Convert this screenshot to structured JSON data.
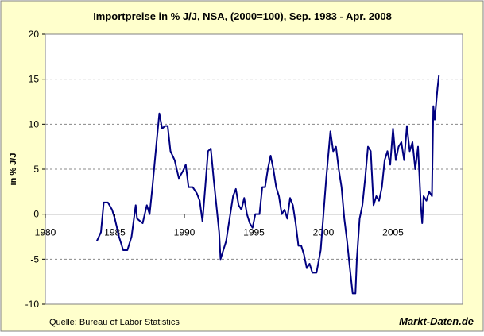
{
  "chart_data": {
    "type": "line",
    "title": "Importpreise in % J/J, NSA, (2000=100), Sep. 1983 - Apr. 2008",
    "y_label": "in % J/J",
    "source": "Quelle: Bureau of Labor Statistics",
    "brand": "Markt-Daten.de",
    "xlim": [
      1980,
      2010
    ],
    "xticks": [
      1980,
      1985,
      1990,
      1995,
      2000,
      2005
    ],
    "ylim": [
      -10,
      20
    ],
    "yticks": [
      -10,
      -5,
      0,
      5,
      10,
      15,
      20
    ],
    "grid": true,
    "series": [
      {
        "name": "Importpreise",
        "color": "#000080",
        "x": [
          1983.7,
          1984.0,
          1984.2,
          1984.5,
          1984.8,
          1985.0,
          1985.3,
          1985.6,
          1985.9,
          1986.2,
          1986.5,
          1986.6,
          1987.0,
          1987.3,
          1987.5,
          1987.7,
          1988.0,
          1988.2,
          1988.4,
          1988.6,
          1988.8,
          1989.0,
          1989.3,
          1989.6,
          1989.9,
          1990.1,
          1990.3,
          1990.6,
          1990.9,
          1991.1,
          1991.3,
          1991.5,
          1991.7,
          1991.9,
          1992.1,
          1992.3,
          1992.5,
          1992.6,
          1992.8,
          1993.0,
          1993.2,
          1993.5,
          1993.7,
          1993.9,
          1994.1,
          1994.3,
          1994.5,
          1994.7,
          1994.9,
          1995.1,
          1995.4,
          1995.6,
          1995.8,
          1996.0,
          1996.2,
          1996.4,
          1996.6,
          1996.8,
          1997.0,
          1997.2,
          1997.4,
          1997.6,
          1997.8,
          1998.0,
          1998.2,
          1998.4,
          1998.6,
          1998.8,
          1999.0,
          1999.2,
          1999.5,
          1999.8,
          2000.0,
          2000.2,
          2000.5,
          2000.7,
          2000.9,
          2001.1,
          2001.3,
          2001.5,
          2001.7,
          2001.9,
          2002.1,
          2002.3,
          2002.4,
          2002.6,
          2002.8,
          2003.0,
          2003.2,
          2003.4,
          2003.6,
          2003.8,
          2004.0,
          2004.2,
          2004.4,
          2004.6,
          2004.8,
          2005.0,
          2005.2,
          2005.4,
          2005.6,
          2005.8,
          2006.0,
          2006.2,
          2006.4,
          2006.6,
          2006.8,
          2007.0,
          2007.1,
          2007.2,
          2007.4,
          2007.6,
          2007.8,
          2007.9,
          2008.0,
          2008.2,
          2008.3
        ],
        "values": [
          -3.0,
          -2.0,
          1.3,
          1.3,
          0.5,
          -0.5,
          -2.5,
          -4.0,
          -4.0,
          -2.5,
          1.0,
          -0.5,
          -1.0,
          1.0,
          0,
          3,
          8,
          11.2,
          9.5,
          9.8,
          9.8,
          7,
          6,
          4,
          4.8,
          5.5,
          3,
          3,
          2.3,
          1.5,
          -0.8,
          3,
          7,
          7.3,
          4,
          1,
          -2,
          -5,
          -4,
          -3,
          -1,
          2,
          2.8,
          1,
          0.5,
          1.8,
          0,
          -1,
          -1.5,
          0,
          0,
          3,
          3,
          5,
          6.5,
          5,
          3,
          2,
          0,
          0.5,
          -0.5,
          1.8,
          1,
          -1,
          -3.5,
          -3.5,
          -4.5,
          -6,
          -5.5,
          -6.5,
          -6.5,
          -4,
          0,
          4,
          9.2,
          7,
          7.5,
          5,
          3,
          -0.5,
          -3,
          -6,
          -8.8,
          -8.8,
          -5,
          -0.5,
          1,
          4,
          7.5,
          7,
          1,
          2,
          1.5,
          3,
          6,
          7,
          5.5,
          9.5,
          6,
          7.5,
          8,
          6,
          9.8,
          7,
          8,
          5,
          7.5,
          1,
          -1,
          2,
          1.5,
          2.5,
          2,
          12,
          10.5,
          14,
          15.4
        ]
      }
    ]
  }
}
